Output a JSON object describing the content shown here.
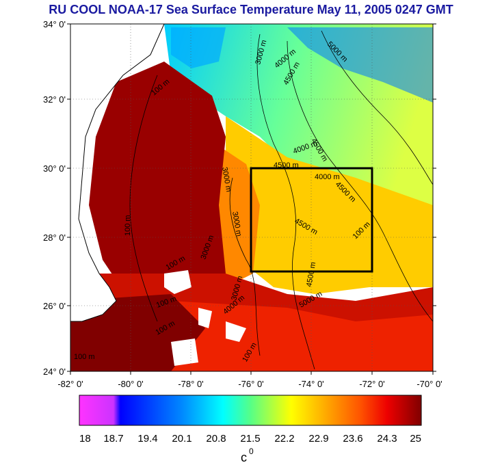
{
  "title": "RU COOL  NOAA-17 Sea Surface Temperature May 11, 2005 0247 GMT",
  "lat_labels": [
    "34° 0'",
    "32° 0'",
    "30° 0'",
    "28° 0'",
    "26° 0'",
    "24° 0'"
  ],
  "lon_labels": [
    "-82° 0'",
    "-80° 0'",
    "-78° 0'",
    "-76° 0'",
    "-74° 0'",
    "-72° 0'",
    "-70° 0'"
  ],
  "colorbar": {
    "ticks": [
      "18",
      "18.7",
      "19.4",
      "20.1",
      "20.8",
      "21.5",
      "22.2",
      "22.9",
      "23.6",
      "24.3",
      "25"
    ],
    "unit_label": "c",
    "unit_sup": "0",
    "colors": [
      "#ff33ff",
      "#cc33ff",
      "#0000ff",
      "#0088ff",
      "#00ffff",
      "#55ff88",
      "#ffff00",
      "#ffaa00",
      "#ff5500",
      "#ee0000",
      "#aa0000",
      "#800000"
    ]
  },
  "contour_labels": [
    "3000 m",
    "4000 m",
    "4500 m",
    "5000 m",
    "4500 m",
    "3000 m",
    "4000 m",
    "4500 m",
    "4000 m",
    "4500 m",
    "4500 m",
    "3000 m",
    "3000 m",
    "4500 m",
    "5000 m",
    "100 m",
    "100 m",
    "100 m",
    "100 m",
    "100 m",
    "100 m",
    "3000 m",
    "4000 m",
    "100 m",
    "100 m"
  ],
  "study_box": {
    "lon_min": -76,
    "lon_max": -72,
    "lat_min": 27,
    "lat_max": 30
  }
}
